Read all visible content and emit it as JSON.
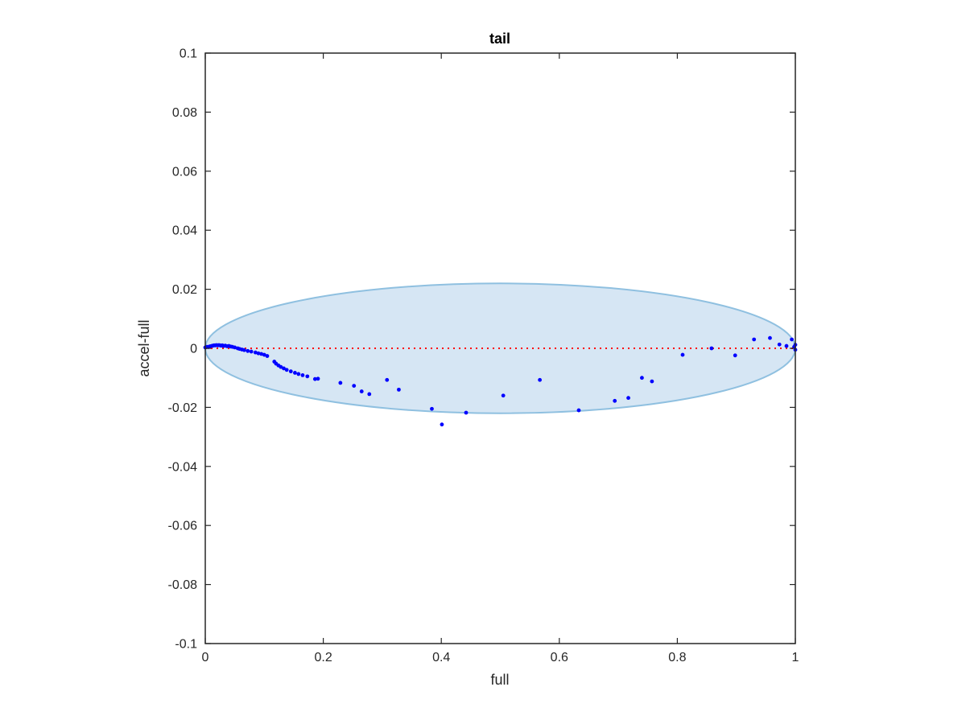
{
  "chart_data": {
    "type": "scatter",
    "title": "tail",
    "xlabel": "full",
    "ylabel": "accel-full",
    "xlim": [
      0,
      1
    ],
    "ylim": [
      -0.1,
      0.1
    ],
    "xticks": [
      0,
      0.2,
      0.4,
      0.6,
      0.8,
      1
    ],
    "xtick_labels": [
      "0",
      "0.2",
      "0.4",
      "0.6",
      "0.8",
      "1"
    ],
    "yticks": [
      -0.1,
      -0.08,
      -0.06,
      -0.04,
      -0.02,
      0,
      0.02,
      0.04,
      0.06,
      0.08,
      0.1
    ],
    "ytick_labels": [
      "-0.1",
      "-0.08",
      "-0.06",
      "-0.04",
      "-0.02",
      "0",
      "0.02",
      "0.04",
      "0.06",
      "0.08",
      "0.1"
    ],
    "grid": false,
    "colors": {
      "points": "#0000ff",
      "zero_line": "#ff0000",
      "ellipse_fill": "#d6e6f4",
      "ellipse_stroke": "#8fc0e0",
      "axes": "#262626"
    },
    "ellipse": {
      "center": [
        0.5,
        0.0
      ],
      "semi_axes": [
        0.5,
        0.022
      ]
    },
    "reference_line": {
      "y": 0,
      "style": "dotted"
    },
    "series": [
      {
        "points": [
          [
            0.0,
            0.0003
          ],
          [
            0.003,
            0.0005
          ],
          [
            0.005,
            0.0004
          ],
          [
            0.007,
            0.0006
          ],
          [
            0.009,
            0.0007
          ],
          [
            0.011,
            0.0008
          ],
          [
            0.013,
            0.0009
          ],
          [
            0.015,
            0.001
          ],
          [
            0.017,
            0.001
          ],
          [
            0.019,
            0.0011
          ],
          [
            0.021,
            0.001
          ],
          [
            0.023,
            0.0011
          ],
          [
            0.025,
            0.001
          ],
          [
            0.027,
            0.0009
          ],
          [
            0.029,
            0.001
          ],
          [
            0.031,
            0.0008
          ],
          [
            0.034,
            0.0009
          ],
          [
            0.037,
            0.0007
          ],
          [
            0.04,
            0.0008
          ],
          [
            0.043,
            0.0006
          ],
          [
            0.046,
            0.0005
          ],
          [
            0.05,
            0.0003
          ],
          [
            0.055,
            0.0
          ],
          [
            0.058,
            -0.0002
          ],
          [
            0.062,
            -0.0004
          ],
          [
            0.066,
            -0.0006
          ],
          [
            0.072,
            -0.0009
          ],
          [
            0.078,
            -0.0011
          ],
          [
            0.085,
            -0.0014
          ],
          [
            0.09,
            -0.0017
          ],
          [
            0.095,
            -0.0019
          ],
          [
            0.1,
            -0.0022
          ],
          [
            0.105,
            -0.0026
          ],
          [
            0.117,
            -0.0045
          ],
          [
            0.12,
            -0.0052
          ],
          [
            0.124,
            -0.0058
          ],
          [
            0.128,
            -0.0063
          ],
          [
            0.133,
            -0.0068
          ],
          [
            0.138,
            -0.0073
          ],
          [
            0.145,
            -0.0078
          ],
          [
            0.152,
            -0.0083
          ],
          [
            0.158,
            -0.0087
          ],
          [
            0.165,
            -0.0091
          ],
          [
            0.173,
            -0.0095
          ],
          [
            0.186,
            -0.0104
          ],
          [
            0.191,
            -0.0103
          ],
          [
            0.229,
            -0.0117
          ],
          [
            0.252,
            -0.0127
          ],
          [
            0.265,
            -0.0146
          ],
          [
            0.278,
            -0.0155
          ],
          [
            0.308,
            -0.0107
          ],
          [
            0.328,
            -0.014
          ],
          [
            0.384,
            -0.0205
          ],
          [
            0.401,
            -0.0258
          ],
          [
            0.442,
            -0.0218
          ],
          [
            0.505,
            -0.016
          ],
          [
            0.567,
            -0.0107
          ],
          [
            0.633,
            -0.021
          ],
          [
            0.694,
            -0.0178
          ],
          [
            0.717,
            -0.0168
          ],
          [
            0.74,
            -0.01
          ],
          [
            0.757,
            -0.0112
          ],
          [
            0.809,
            -0.0022
          ],
          [
            0.858,
            0.0
          ],
          [
            0.898,
            -0.0024
          ],
          [
            0.93,
            0.003
          ],
          [
            0.957,
            0.0035
          ],
          [
            0.973,
            0.0013
          ],
          [
            0.985,
            0.0008
          ],
          [
            0.994,
            0.003
          ],
          [
            0.998,
            0.0005
          ],
          [
            1.0,
            -0.0005
          ],
          [
            1.0,
            0.0012
          ]
        ]
      }
    ]
  }
}
